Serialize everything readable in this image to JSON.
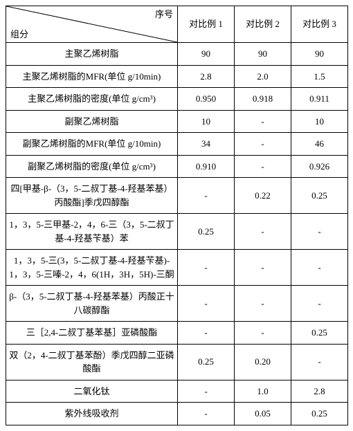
{
  "header": {
    "diag_top": "序号",
    "diag_bottom": "组分",
    "cols": [
      "对比例 1",
      "对比例 2",
      "对比例 3"
    ]
  },
  "rows": [
    {
      "label": "主聚乙烯树脂",
      "v": [
        "90",
        "90",
        "90"
      ]
    },
    {
      "label": "主聚乙烯树脂的MFR(单位 g/10min)",
      "v": [
        "2.8",
        "2.0",
        "1.5"
      ]
    },
    {
      "label": "主聚乙烯树脂的密度(单位 g/cm³)",
      "v": [
        "0.950",
        "0.918",
        "0.911"
      ]
    },
    {
      "label": "副聚乙烯树脂",
      "v": [
        "10",
        "-",
        "10"
      ]
    },
    {
      "label": "副聚乙烯树脂的MFR(单位 g/10min)",
      "v": [
        "34",
        "-",
        "46"
      ]
    },
    {
      "label": "副聚乙烯树脂的密度(单位 g/cm³)",
      "v": [
        "0.910",
        "-",
        "0.926"
      ]
    },
    {
      "label": "四[甲基-β-（3，5-二叔丁基-4-羟基苯基）丙酸酯]季戊四醇酯",
      "v": [
        "-",
        "0.22",
        "0.25"
      ]
    },
    {
      "label": "1，3，5-三甲基-2，4，6-三（3，5-二叔丁基-4-羟基苄基）苯",
      "v": [
        "0.25",
        "-",
        "-"
      ]
    },
    {
      "label": "1，3，5-三(3，5-二叔丁基-4-羟基苄基)-1，3，5-三嗪-2，4，6(1H，3H，5H)-三酮",
      "v": [
        "-",
        "-",
        "-"
      ]
    },
    {
      "label": "β-（3，5-二叔丁基-4-羟基苯基）丙酸正十八碳醇酯",
      "v": [
        "-",
        "-",
        "-"
      ]
    },
    {
      "label": "三［2,4-二叔丁基苯基］亚磷酸酯",
      "v": [
        "-",
        "-",
        "0.25"
      ]
    },
    {
      "label": "双（2，4-二叔丁基苯酚）季戊四醇二亚磷酸酯",
      "v": [
        "0.25",
        "0.20",
        "-"
      ]
    },
    {
      "label": "二氧化钛",
      "v": [
        "-",
        "1.0",
        "2.8"
      ]
    },
    {
      "label": "紫外线吸收剂",
      "v": [
        "-",
        "0.05",
        "0.25"
      ]
    }
  ]
}
